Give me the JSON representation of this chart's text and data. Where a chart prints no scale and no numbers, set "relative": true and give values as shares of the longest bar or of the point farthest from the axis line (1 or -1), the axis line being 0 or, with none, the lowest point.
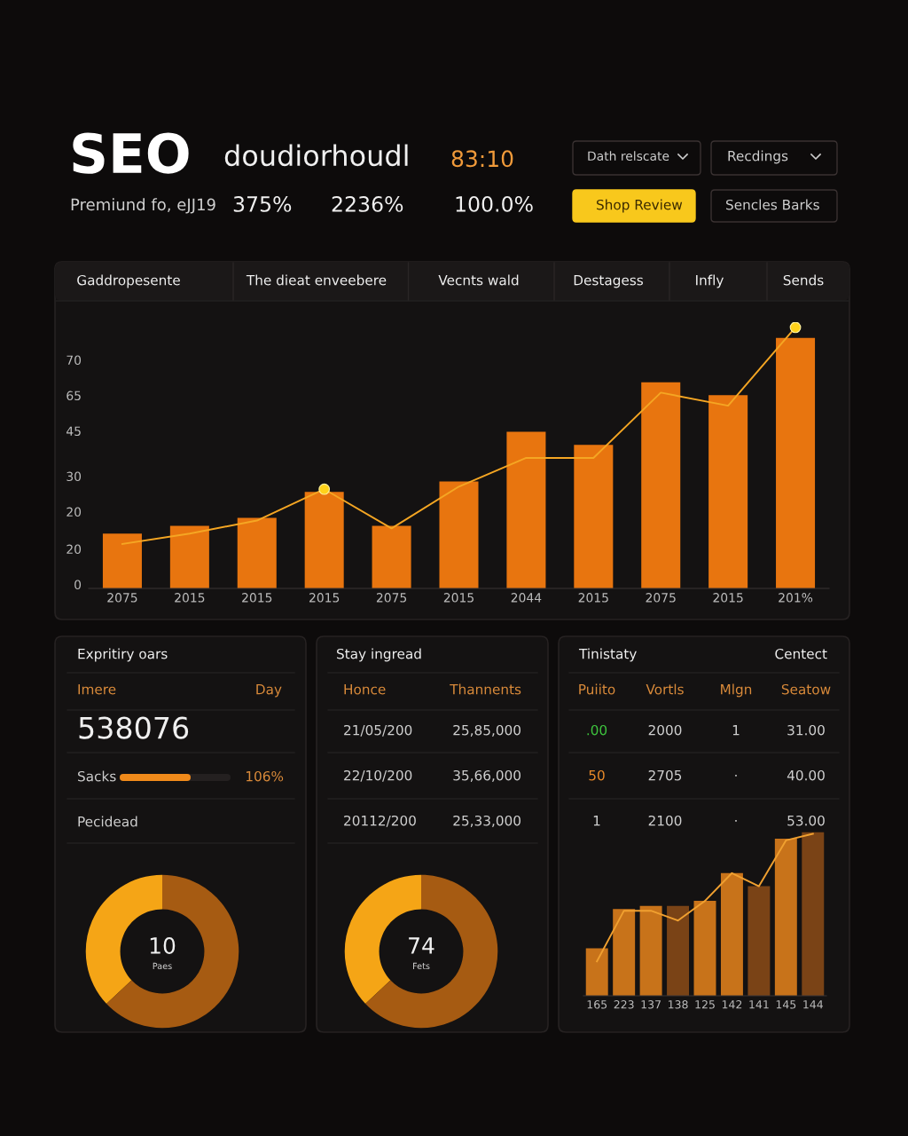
{
  "chart_data": [
    {
      "type": "other",
      "title": "SEO",
      "annotations": [
        "doudiorhoudl",
        "83:10",
        "Premiund fo, eJJ19",
        "375%",
        "2236%",
        "100.0%",
        "Dath relscate",
        "Recdings",
        "Shop Review",
        "Sencles Barks"
      ]
    },
    {
      "type": "bar",
      "categories": [
        "2075",
        "2015",
        "2015",
        "2015",
        "2075",
        "2015",
        "2044",
        "2015",
        "2075",
        "2015",
        "201%"
      ],
      "relative": true,
      "series": [
        {
          "type": "bar",
          "color": "#e8750f",
          "values": [
            0.21,
            0.24,
            0.27,
            0.37,
            0.24,
            0.41,
            0.6,
            0.55,
            0.79,
            0.74,
            0.96
          ]
        },
        {
          "type": "line",
          "color": "#f5a623",
          "values": [
            0.17,
            0.21,
            0.26,
            0.38,
            0.23,
            0.39,
            0.5,
            0.5,
            0.75,
            0.7,
            1.0
          ]
        },
        {
          "type": "scatter",
          "color": "#ffd21a",
          "values": [
            null,
            null,
            null,
            0.38,
            null,
            null,
            null,
            null,
            null,
            null,
            1.0
          ]
        }
      ],
      "annotations": [
        "Gaddropesente",
        "The dieat enveebere",
        "Vecnts wald",
        "Destagess",
        "Infly",
        "Sends",
        "70",
        "65",
        "45",
        "30",
        "20",
        "20",
        "0"
      ]
    },
    {
      "type": "other",
      "title": "Expritiry oars",
      "annotations": [
        "Imere",
        "Day",
        "538076",
        "Sacks",
        "106%",
        "Pecidead"
      ]
    },
    {
      "type": "donut",
      "categories": [
        null,
        null
      ],
      "values": [
        37,
        63
      ],
      "colors": [
        "#f5a516",
        "#a65b12"
      ],
      "annotations": [
        "10",
        "Paes"
      ]
    },
    {
      "type": "other",
      "title": "Stay ingread",
      "annotations": [
        "Honce",
        "Thannents",
        "21/05/200",
        "25,85,000",
        "22/10/200",
        "35,66,000",
        "20112/200",
        "25,33,000"
      ]
    },
    {
      "type": "donut",
      "categories": [
        null,
        null
      ],
      "values": [
        37,
        63
      ],
      "colors": [
        "#f5a516",
        "#a65b12"
      ],
      "annotations": [
        "74",
        "Fets"
      ]
    },
    {
      "type": "other",
      "title": "Tinistaty",
      "annotations": [
        "Centect",
        "Puiito",
        "Vortls",
        "Mlgn",
        "Seatow",
        ".00",
        "2000",
        "1",
        "31.00",
        "50",
        "2705",
        "·",
        "40.00",
        "1",
        "2100",
        "·",
        "53.00"
      ]
    },
    {
      "type": "bar",
      "categories": [
        "165",
        "223",
        "137",
        "138",
        "125",
        "142",
        "141",
        "145",
        "144"
      ],
      "relative": true,
      "series": [
        {
          "type": "bar",
          "colors": [
            "#c8731a",
            "#c8731a",
            "#c8731a",
            "#7a4316",
            "#c8731a",
            "#c8731a",
            "#7a4316",
            "#c8731a",
            "#7a4316"
          ],
          "values": [
            0.29,
            0.53,
            0.55,
            0.55,
            0.58,
            0.75,
            0.67,
            0.96,
            1.0
          ]
        },
        {
          "type": "line",
          "color": "#f0a030",
          "values": [
            0.21,
            0.52,
            0.52,
            0.46,
            0.58,
            0.75,
            0.67,
            0.95,
            0.99
          ]
        }
      ]
    }
  ]
}
